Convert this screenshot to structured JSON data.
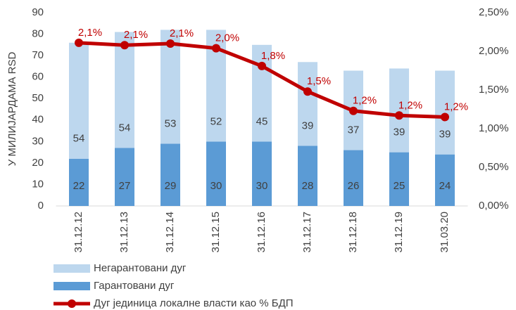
{
  "chart_data": {
    "type": "bar",
    "y_label": "У МИЛИЈАРДАМА RSD",
    "categories": [
      "31.12.12",
      "31.12.13",
      "31.12.14",
      "31.12.15",
      "31.12.16",
      "31.12.17",
      "31.12.18",
      "31.12.19",
      "31.03.20"
    ],
    "stacked": true,
    "series": [
      {
        "name": "Гарантовани дуг",
        "color": "#5b9bd5",
        "values": [
          22,
          27,
          29,
          30,
          30,
          28,
          26,
          25,
          24
        ]
      },
      {
        "name": "Негарантовани дуг",
        "color": "#bdd7ee",
        "values": [
          54,
          54,
          53,
          52,
          45,
          39,
          37,
          39,
          39
        ]
      },
      {
        "name": "Дуг јединица локалне власти као % БДП",
        "type": "line",
        "axis": "y2",
        "color": "#c00000",
        "values": [
          2.11,
          2.08,
          2.1,
          2.04,
          1.81,
          1.48,
          1.23,
          1.17,
          1.15
        ],
        "value_labels": [
          "2,1%",
          "2,1%",
          "2,1%",
          "2,0%",
          "1,8%",
          "1,5%",
          "1,2%",
          "1,2%",
          "1,2%"
        ]
      }
    ],
    "ylim": [
      0,
      90
    ],
    "yticks": [
      0,
      10,
      20,
      30,
      40,
      50,
      60,
      70,
      80,
      90
    ],
    "y2lim": [
      0,
      2.5
    ],
    "y2ticks": [
      {
        "value": 0,
        "label": "0,00%"
      },
      {
        "value": 0.5,
        "label": "0,50%"
      },
      {
        "value": 1,
        "label": "1,00%"
      },
      {
        "value": 1.5,
        "label": "1,50%"
      },
      {
        "value": 2,
        "label": "2,00%"
      },
      {
        "value": 2.5,
        "label": "2,50%"
      }
    ],
    "legend": "bottom-left",
    "grid": false
  }
}
